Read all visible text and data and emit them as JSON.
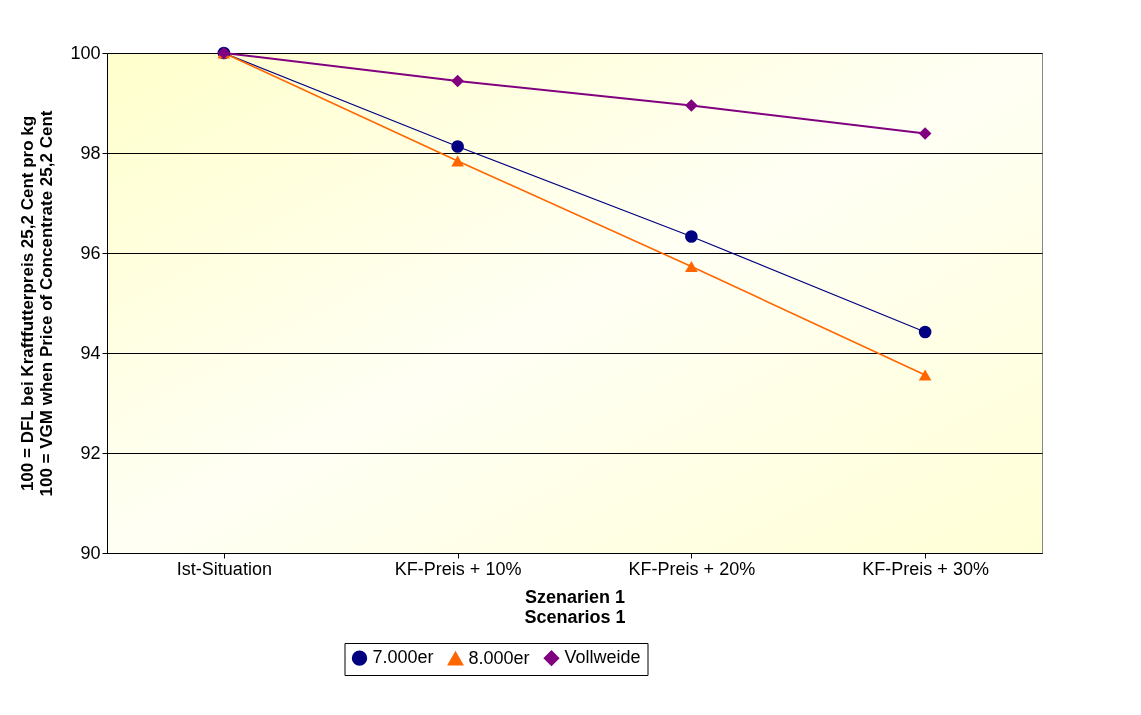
{
  "chart_data": {
    "type": "line",
    "categories": [
      "Ist-Situation",
      "KF-Preis + 10%",
      "KF-Preis + 20%",
      "KF-Preis + 30%"
    ],
    "series": [
      {
        "name": "7.000er",
        "color": "#000080",
        "marker": "circle",
        "values": [
          100,
          98.13,
          96.33,
          94.42
        ]
      },
      {
        "name": "8.000er",
        "color": "#ff6600",
        "marker": "triangle",
        "values": [
          100,
          97.84,
          95.73,
          93.56
        ]
      },
      {
        "name": "Vollweide",
        "color": "#800080",
        "marker": "diamond",
        "values": [
          100,
          99.44,
          98.95,
          98.39
        ]
      }
    ],
    "xlabel": "Szenarien 1\nScenarios 1",
    "ylabel": "100 = DFL bei Kraftfutterpreis 25,2 Cent pro kg\n100 = VGM when Price of Concentrate 25,2 Cent",
    "ylim": [
      90,
      100
    ],
    "yticks": [
      90,
      92,
      94,
      96,
      98,
      100
    ],
    "grid": "y",
    "legend": "bottom",
    "line_style": "solid"
  }
}
